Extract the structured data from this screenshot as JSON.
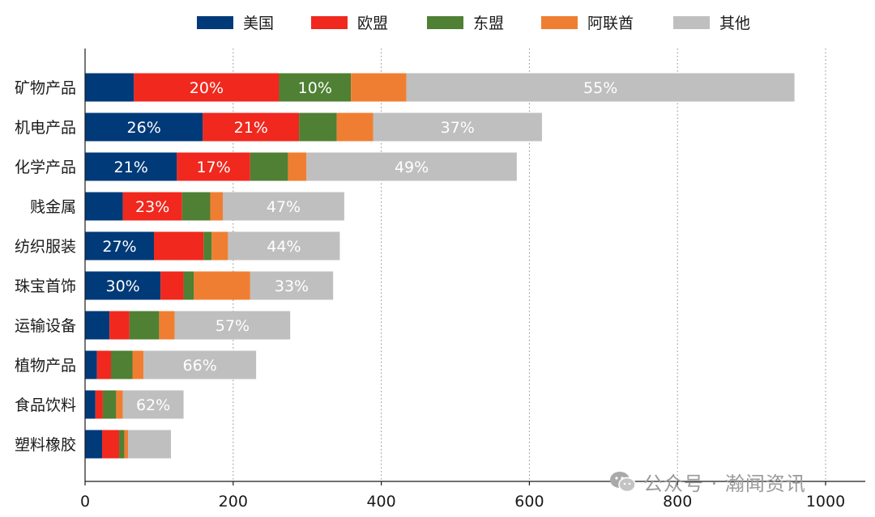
{
  "chart_data": {
    "type": "bar",
    "orientation": "horizontal",
    "stacked": true,
    "categories": [
      "矿物产品",
      "机电产品",
      "化学产品",
      "贱金属",
      "纺织服装",
      "珠宝首饰",
      "运输设备",
      "植物产品",
      "食品饮料",
      "塑料橡胶"
    ],
    "series": [
      {
        "name": "美国",
        "color": "#003A78",
        "values": [
          66,
          159,
          124,
          51,
          93,
          102,
          33,
          16,
          14,
          23
        ]
      },
      {
        "name": "欧盟",
        "color": "#F0281E",
        "values": [
          196,
          130,
          99,
          80,
          67,
          31,
          27,
          19,
          10,
          23
        ]
      },
      {
        "name": "东盟",
        "color": "#4F8034",
        "values": [
          97,
          51,
          51,
          38,
          11,
          14,
          40,
          29,
          18,
          7
        ]
      },
      {
        "name": "阿联酋",
        "color": "#F07E32",
        "values": [
          75,
          49,
          25,
          17,
          22,
          76,
          21,
          15,
          9,
          5
        ]
      },
      {
        "name": "其他",
        "color": "#BFBFBF",
        "values": [
          524,
          228,
          284,
          164,
          151,
          112,
          156,
          152,
          82,
          58
        ]
      }
    ],
    "data_labels": [
      {
        "category": "矿物产品",
        "series": "欧盟",
        "text": "20%"
      },
      {
        "category": "矿物产品",
        "series": "东盟",
        "text": "10%"
      },
      {
        "category": "矿物产品",
        "series": "其他",
        "text": "55%"
      },
      {
        "category": "机电产品",
        "series": "美国",
        "text": "26%"
      },
      {
        "category": "机电产品",
        "series": "欧盟",
        "text": "21%"
      },
      {
        "category": "机电产品",
        "series": "其他",
        "text": "37%"
      },
      {
        "category": "化学产品",
        "series": "美国",
        "text": "21%"
      },
      {
        "category": "化学产品",
        "series": "欧盟",
        "text": "17%"
      },
      {
        "category": "化学产品",
        "series": "其他",
        "text": "49%"
      },
      {
        "category": "贱金属",
        "series": "欧盟",
        "text": "23%"
      },
      {
        "category": "贱金属",
        "series": "其他",
        "text": "47%"
      },
      {
        "category": "纺织服装",
        "series": "美国",
        "text": "27%"
      },
      {
        "category": "纺织服装",
        "series": "其他",
        "text": "44%"
      },
      {
        "category": "珠宝首饰",
        "series": "美国",
        "text": "30%"
      },
      {
        "category": "珠宝首饰",
        "series": "其他",
        "text": "33%"
      },
      {
        "category": "运输设备",
        "series": "其他",
        "text": "57%"
      },
      {
        "category": "植物产品",
        "series": "其他",
        "text": "66%"
      },
      {
        "category": "食品饮料",
        "series": "其他",
        "text": "62%"
      }
    ],
    "xlim": [
      0,
      1000
    ],
    "xticks": [
      0,
      200,
      400,
      600,
      800,
      1000
    ],
    "gridlines": "vertical dotted",
    "legend_position": "top",
    "title": "",
    "xlabel": "",
    "ylabel": ""
  },
  "watermark": {
    "text": "公众号 · 瀚闻资讯"
  }
}
